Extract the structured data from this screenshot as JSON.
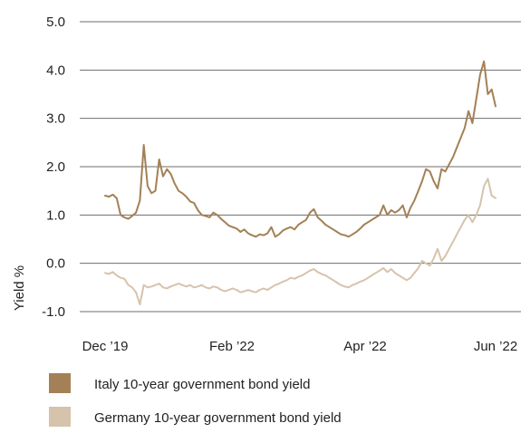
{
  "chart_data": {
    "type": "line",
    "ylabel": "Yield %",
    "xlabel": "",
    "ylim": [
      -1.0,
      5.0
    ],
    "ytick_values": [
      5.0,
      4.0,
      3.0,
      2.0,
      1.0,
      0.0,
      -1.0
    ],
    "ytick_labels": [
      "5.0",
      "4.0",
      "3.0",
      "2.0",
      "1.0",
      "0.0",
      "-1.0"
    ],
    "xtick_labels": [
      "Dec ’19",
      "Feb ’22",
      "Apr ’22",
      "Jun ’22"
    ],
    "grid": "horizontal",
    "legend_position": "bottom-left",
    "colors": {
      "italy": "#a38055",
      "germany": "#d6c3ac",
      "grid": "#6e6e6e"
    },
    "series": [
      {
        "name": "Italy 10-year government bond yield",
        "color": "#a38055",
        "values": [
          1.4,
          1.38,
          1.42,
          1.35,
          1.0,
          0.95,
          0.92,
          0.98,
          1.05,
          1.3,
          2.45,
          1.6,
          1.45,
          1.5,
          2.15,
          1.8,
          1.95,
          1.85,
          1.65,
          1.5,
          1.45,
          1.38,
          1.28,
          1.25,
          1.1,
          1.0,
          0.98,
          0.95,
          1.05,
          1.0,
          0.92,
          0.85,
          0.78,
          0.75,
          0.72,
          0.65,
          0.7,
          0.62,
          0.58,
          0.55,
          0.6,
          0.58,
          0.62,
          0.75,
          0.55,
          0.6,
          0.68,
          0.72,
          0.75,
          0.7,
          0.8,
          0.85,
          0.9,
          1.05,
          1.12,
          0.95,
          0.88,
          0.8,
          0.75,
          0.7,
          0.65,
          0.6,
          0.58,
          0.55,
          0.6,
          0.65,
          0.72,
          0.8,
          0.85,
          0.9,
          0.95,
          1.0,
          1.2,
          1.0,
          1.1,
          1.05,
          1.1,
          1.2,
          0.95,
          1.15,
          1.3,
          1.5,
          1.7,
          1.95,
          1.9,
          1.7,
          1.55,
          1.95,
          1.9,
          2.05,
          2.2,
          2.4,
          2.6,
          2.8,
          3.15,
          2.9,
          3.4,
          3.9,
          4.18,
          3.5,
          3.6,
          3.25
        ]
      },
      {
        "name": "Germany 10-year government bond yield",
        "color": "#d6c3ac",
        "values": [
          -0.2,
          -0.22,
          -0.18,
          -0.25,
          -0.3,
          -0.32,
          -0.45,
          -0.5,
          -0.6,
          -0.85,
          -0.45,
          -0.5,
          -0.48,
          -0.45,
          -0.42,
          -0.5,
          -0.52,
          -0.48,
          -0.45,
          -0.42,
          -0.45,
          -0.48,
          -0.45,
          -0.5,
          -0.48,
          -0.45,
          -0.5,
          -0.52,
          -0.48,
          -0.5,
          -0.55,
          -0.58,
          -0.55,
          -0.52,
          -0.55,
          -0.6,
          -0.58,
          -0.55,
          -0.58,
          -0.6,
          -0.55,
          -0.52,
          -0.55,
          -0.5,
          -0.45,
          -0.42,
          -0.38,
          -0.35,
          -0.3,
          -0.32,
          -0.28,
          -0.25,
          -0.2,
          -0.15,
          -0.12,
          -0.18,
          -0.22,
          -0.25,
          -0.3,
          -0.35,
          -0.4,
          -0.45,
          -0.48,
          -0.5,
          -0.45,
          -0.42,
          -0.38,
          -0.35,
          -0.3,
          -0.25,
          -0.2,
          -0.15,
          -0.1,
          -0.18,
          -0.12,
          -0.2,
          -0.25,
          -0.3,
          -0.35,
          -0.3,
          -0.2,
          -0.1,
          0.05,
          0.0,
          -0.05,
          0.1,
          0.3,
          0.05,
          0.15,
          0.3,
          0.45,
          0.6,
          0.75,
          0.9,
          1.0,
          0.85,
          1.0,
          1.2,
          1.6,
          1.75,
          1.4,
          1.35
        ]
      }
    ]
  }
}
